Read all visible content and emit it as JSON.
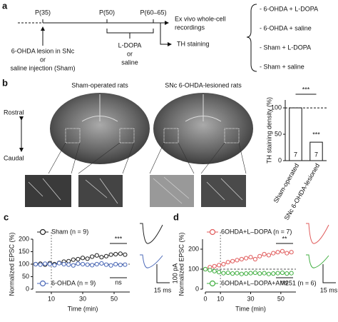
{
  "panel_a": {
    "label": "a",
    "timepoints": [
      "P(35)",
      "P(50)",
      "P(60–65)"
    ],
    "lesion_text": [
      "6-OHDA lesion in SNc",
      "or",
      "saline injection (Sham)"
    ],
    "treatment_text": [
      "L-DOPA",
      "or",
      "saline"
    ],
    "recording_text": [
      "Ex vivo whole-cell",
      "recordings"
    ],
    "staining_text": "TH staining",
    "groups": [
      "- 6-OHDA + L-DOPA",
      "- 6-OHDA + saline",
      "- Sham + L-DOPA",
      "- Sham + saline"
    ]
  },
  "panel_b": {
    "label": "b",
    "titles": [
      "Sham-operated rats",
      "SNc 6-OHDA-lesioned rats"
    ],
    "axis_labels": [
      "Rostral",
      "Caudal"
    ]
  },
  "chart_data": [
    {
      "type": "bar",
      "y_label": "TH staining density (%)",
      "categories": [
        "Sham-operated",
        "SNc 6-OHDA-lesioned"
      ],
      "values": [
        100,
        35
      ],
      "n_labels": [
        "7",
        "7"
      ],
      "color": "#ffffff",
      "ylim": [
        0,
        115
      ],
      "yticks": [
        0,
        50,
        100
      ],
      "reference_line": 100,
      "annotations": [
        "***",
        "***"
      ]
    },
    {
      "type": "line",
      "label": "c",
      "x_label": "Time (min)",
      "y_label": "Normalized EPSC (%)",
      "x": [
        0,
        3,
        6,
        9,
        12,
        15,
        18,
        21,
        24,
        27,
        30,
        33,
        36,
        39,
        42,
        45,
        48,
        51,
        54,
        57
      ],
      "series": [
        {
          "name": "Sham (n = 9)",
          "color": "#222222",
          "values": [
            100,
            102,
            98,
            104,
            100,
            105,
            110,
            112,
            118,
            120,
            125,
            122,
            130,
            135,
            128,
            132,
            138,
            140,
            142,
            138
          ]
        },
        {
          "name": "6-OHDA (n = 9)",
          "color": "#4a68b8",
          "values": [
            100,
            98,
            102,
            100,
            96,
            104,
            100,
            98,
            95,
            102,
            100,
            98,
            96,
            100,
            103,
            98,
            95,
            100,
            97,
            98
          ]
        }
      ],
      "xlim": [
        0,
        60
      ],
      "ylim": [
        0,
        200
      ],
      "xticks": [
        10,
        30,
        50
      ],
      "yticks": [
        0,
        50,
        100,
        150,
        200
      ],
      "reference_line": 100,
      "event_x": 10,
      "annotations": [
        "***",
        "ns"
      ],
      "scale_labels": [
        "100 pA",
        "15 ms"
      ]
    },
    {
      "type": "line",
      "label": "d",
      "x_label": "Time (min)",
      "y_label": "Normalized EPSC (%)",
      "x": [
        0,
        3,
        6,
        9,
        12,
        15,
        18,
        21,
        24,
        27,
        30,
        33,
        36,
        39,
        42,
        45,
        48,
        51,
        54,
        57
      ],
      "series": [
        {
          "name": "6OHDA+L–DOPA (n = 7)",
          "color": "#e05a5a",
          "values": [
            100,
            110,
            115,
            120,
            125,
            135,
            140,
            145,
            150,
            155,
            160,
            150,
            165,
            175,
            170,
            180,
            185,
            190,
            180,
            185
          ]
        },
        {
          "name": "6OHDA+L–DOPA+AM251 (n = 6)",
          "color": "#3fae3f",
          "values": [
            100,
            95,
            90,
            85,
            80,
            82,
            78,
            80,
            76,
            78,
            80,
            82,
            78,
            80,
            76,
            78,
            80,
            82,
            78,
            80
          ]
        }
      ],
      "xlim": [
        0,
        60
      ],
      "ylim": [
        0,
        250
      ],
      "xticks": [
        0,
        10,
        30,
        50
      ],
      "yticks": [
        0,
        100,
        200
      ],
      "reference_line": 100,
      "event_x": 10,
      "annotations": [
        "**",
        "ns"
      ],
      "scale_labels": [
        "100 pA",
        "15 ms"
      ]
    }
  ]
}
